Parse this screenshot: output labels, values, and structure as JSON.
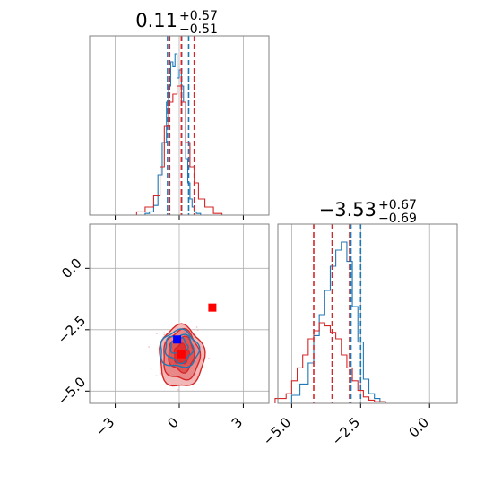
{
  "colors": {
    "blue": "#1f77b4",
    "red": "#d62728",
    "marker_blue": "#0000ff",
    "marker_red": "#ff0000",
    "grid": "#b0b0b0",
    "frame": "#808080"
  },
  "chart_data": [
    {
      "type": "histogram",
      "panel": "x marginal",
      "title_main": "0.11",
      "title_plus": "+0.57",
      "title_minus": "−0.51",
      "xlim": [
        -4.2,
        4.2
      ],
      "xticks": [
        -3,
        0,
        3
      ],
      "grid": true,
      "series": [
        {
          "color": "#1f77b4",
          "bin_edges": [
            -1.6,
            -1.4,
            -1.2,
            -1.0,
            -0.8,
            -0.6,
            -0.5,
            -0.4,
            -0.3,
            -0.2,
            -0.1,
            0.0,
            0.1,
            0.2,
            0.3,
            0.4,
            0.5,
            0.6,
            0.7,
            0.8,
            1.0,
            1.2
          ],
          "counts": [
            0.01,
            0.02,
            0.06,
            0.25,
            0.45,
            0.7,
            0.8,
            0.95,
            0.92,
            1.0,
            0.85,
            0.9,
            0.8,
            0.7,
            0.35,
            0.2,
            0.1,
            0.05,
            0.02,
            0.01,
            0.0
          ],
          "quantile_lines": [
            -0.55,
            0.11,
            0.44
          ]
        },
        {
          "color": "#d62728",
          "bin_edges": [
            -2.0,
            -1.6,
            -1.2,
            -0.9,
            -0.7,
            -0.5,
            -0.3,
            -0.1,
            0.1,
            0.3,
            0.5,
            0.7,
            0.9,
            1.2,
            1.6,
            2.0
          ],
          "counts": [
            0.02,
            0.05,
            0.12,
            0.3,
            0.55,
            0.7,
            0.75,
            0.8,
            0.7,
            0.45,
            0.3,
            0.2,
            0.1,
            0.05,
            0.01
          ],
          "quantile_lines": [
            -0.45,
            0.1,
            0.7
          ]
        }
      ]
    },
    {
      "type": "histogram",
      "panel": "y marginal",
      "title_main": "−3.53",
      "title_plus": "+0.67",
      "title_minus": "−0.69",
      "xlim": [
        -5.5,
        1.0
      ],
      "xticks": [
        -5.0,
        -2.5,
        0.0
      ],
      "xtick_labels": [
        "−5.0",
        "−2.5",
        "0.0"
      ],
      "grid": true,
      "series": [
        {
          "color": "#1f77b4",
          "bin_edges": [
            -5.0,
            -4.7,
            -4.4,
            -4.2,
            -4.0,
            -3.8,
            -3.6,
            -3.4,
            -3.2,
            -3.0,
            -2.8,
            -2.6,
            -2.4,
            -2.2,
            -2.0,
            -1.8,
            -1.6,
            -1.2
          ],
          "counts": [
            0.05,
            0.12,
            0.25,
            0.42,
            0.55,
            0.7,
            0.85,
            0.95,
            1.0,
            0.88,
            0.6,
            0.38,
            0.15,
            0.06,
            0.03,
            0.01,
            0.0
          ],
          "quantile_lines": [
            -3.53,
            -2.85,
            -2.5
          ]
        },
        {
          "color": "#d62728",
          "bin_edges": [
            -5.6,
            -5.2,
            -5.0,
            -4.8,
            -4.6,
            -4.4,
            -4.2,
            -4.0,
            -3.8,
            -3.6,
            -3.4,
            -3.2,
            -3.0,
            -2.8,
            -2.6,
            -2.4,
            -2.2,
            -2.0,
            -1.6
          ],
          "counts": [
            0.03,
            0.06,
            0.14,
            0.22,
            0.3,
            0.4,
            0.45,
            0.5,
            0.48,
            0.44,
            0.4,
            0.3,
            0.22,
            0.14,
            0.08,
            0.04,
            0.02,
            0.01
          ],
          "quantile_lines": [
            -4.2,
            -3.53,
            -2.9
          ]
        }
      ]
    },
    {
      "type": "contour",
      "panel": "joint",
      "xlim": [
        -4.2,
        4.2
      ],
      "ylim": [
        -5.5,
        1.8
      ],
      "xticks": [
        -3,
        0,
        3
      ],
      "yticks": [
        0.0,
        -2.5,
        -5.0
      ],
      "ytick_labels": [
        "0.0",
        "−2.5",
        "−5.0"
      ],
      "grid": true,
      "red_cloud": {
        "center": [
          0.1,
          -3.5
        ],
        "spread": [
          0.75,
          0.7
        ]
      },
      "blue_cloud": {
        "center": [
          0.0,
          -3.3
        ],
        "spread": [
          0.55,
          0.55
        ]
      },
      "markers": [
        {
          "color": "#0000ff",
          "x": -0.1,
          "y": -2.9
        },
        {
          "color": "#ff0000",
          "x": 0.1,
          "y": -3.5
        },
        {
          "color": "#ff0000",
          "x": 1.55,
          "y": -1.6
        }
      ]
    }
  ]
}
